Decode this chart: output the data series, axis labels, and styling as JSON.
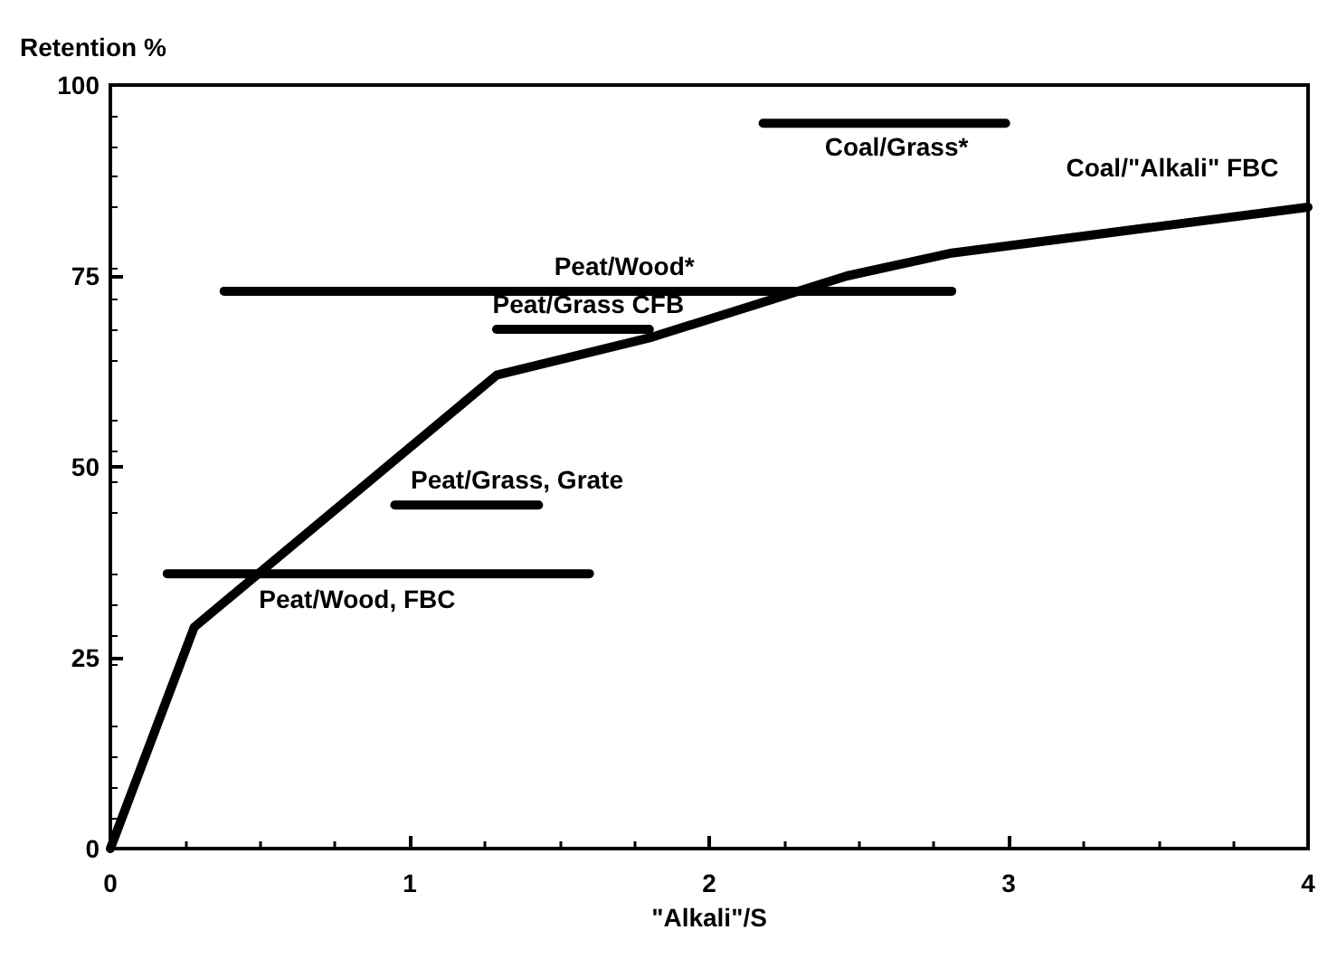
{
  "chart_data": {
    "type": "line",
    "xlabel": "\"Alkali\"/S",
    "ylabel": "Retention %",
    "xlim": [
      0,
      4
    ],
    "ylim": [
      0,
      100
    ],
    "xticks": [
      0,
      1,
      2,
      3,
      4
    ],
    "yticks": [
      0,
      25,
      50,
      75,
      100
    ],
    "grid": false,
    "legend": false,
    "marker": "none",
    "line_style": "solid",
    "series": [
      {
        "name": "Coal/\"Alkali\" FBC",
        "color": "#000000",
        "x": [
          0,
          0.28,
          1.29,
          1.81,
          2.46,
          2.81,
          4
        ],
        "values": [
          0,
          29,
          62,
          67,
          75,
          78,
          84
        ]
      },
      {
        "name": "Peat/Wood*",
        "color": "#000000",
        "x": [
          0.38,
          2.81
        ],
        "values": [
          73,
          73
        ]
      },
      {
        "name": "Peat/Grass CFB",
        "color": "#000000",
        "x": [
          1.29,
          1.8
        ],
        "values": [
          68,
          68
        ]
      },
      {
        "name": "Peat/Grass, Grate",
        "color": "#000000",
        "x": [
          0.95,
          1.43
        ],
        "values": [
          45,
          45
        ]
      },
      {
        "name": "Peat/Wood, FBC",
        "color": "#000000",
        "x": [
          0.19,
          1.6
        ],
        "values": [
          36,
          36
        ]
      },
      {
        "name": "Coal/Grass*",
        "color": "#000000",
        "x": [
          2.18,
          2.99
        ],
        "values": [
          95,
          95
        ]
      }
    ]
  }
}
